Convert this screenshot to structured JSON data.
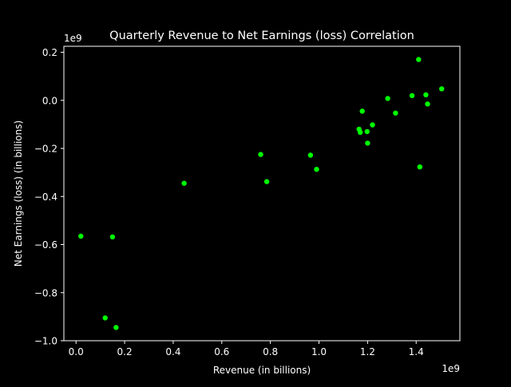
{
  "chart_data": {
    "type": "scatter",
    "title": "Quarterly Revenue to Net Earnings (loss) Correlation",
    "xlabel": "Revenue (in billions)",
    "ylabel": "Net Earnings (loss) (in billions)",
    "x_offset_label": "1e9",
    "y_offset_label": "1e9",
    "xlim": [
      -0.05,
      1.58
    ],
    "ylim": [
      -1.0,
      0.225
    ],
    "xticks": [
      0.0,
      0.2,
      0.4,
      0.6,
      0.8,
      1.0,
      1.2,
      1.4
    ],
    "xtick_labels": [
      "0.0",
      "0.2",
      "0.4",
      "0.6",
      "0.8",
      "1.0",
      "1.2",
      "1.4"
    ],
    "yticks": [
      -1.0,
      -0.8,
      -0.6,
      -0.4,
      -0.2,
      0.0,
      0.2
    ],
    "ytick_labels": [
      "−1.0",
      "−0.8",
      "−0.6",
      "−0.4",
      "−0.2",
      "0.0",
      "0.2"
    ],
    "grid": false,
    "background_color": "#000000",
    "foreground_color": "#ffffff",
    "marker_color": "#00ff00",
    "points": [
      {
        "x": 0.02,
        "y": -0.565
      },
      {
        "x": 0.12,
        "y": -0.905
      },
      {
        "x": 0.15,
        "y": -0.568
      },
      {
        "x": 0.165,
        "y": -0.945
      },
      {
        "x": 0.445,
        "y": -0.345
      },
      {
        "x": 0.76,
        "y": -0.225
      },
      {
        "x": 0.785,
        "y": -0.338
      },
      {
        "x": 0.965,
        "y": -0.228
      },
      {
        "x": 0.99,
        "y": -0.287
      },
      {
        "x": 1.165,
        "y": -0.12
      },
      {
        "x": 1.17,
        "y": -0.133
      },
      {
        "x": 1.178,
        "y": -0.045
      },
      {
        "x": 1.198,
        "y": -0.13
      },
      {
        "x": 1.2,
        "y": -0.178
      },
      {
        "x": 1.22,
        "y": -0.102
      },
      {
        "x": 1.283,
        "y": 0.008
      },
      {
        "x": 1.315,
        "y": -0.053
      },
      {
        "x": 1.383,
        "y": 0.02
      },
      {
        "x": 1.41,
        "y": 0.17
      },
      {
        "x": 1.415,
        "y": -0.277
      },
      {
        "x": 1.44,
        "y": 0.023
      },
      {
        "x": 1.447,
        "y": -0.015
      },
      {
        "x": 1.505,
        "y": 0.048
      }
    ]
  }
}
